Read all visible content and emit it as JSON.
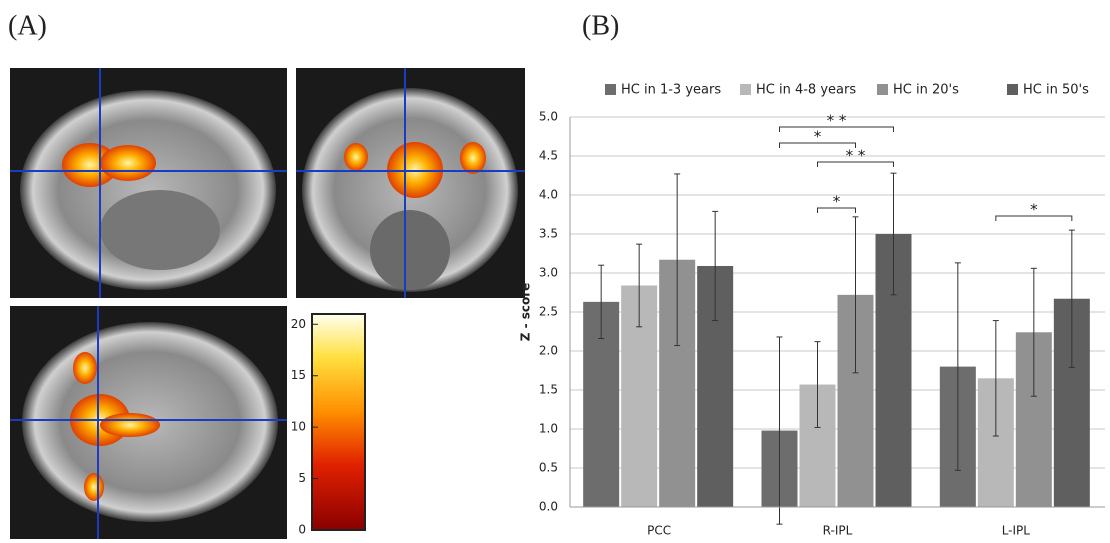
{
  "panel_labels": {
    "a": "(A)",
    "b": "(B)"
  },
  "colorbar": {
    "lim": [
      0,
      21
    ],
    "ticks": [
      0,
      5,
      10,
      15,
      20
    ]
  },
  "chart_data": {
    "type": "bar",
    "y_label": "Z - score",
    "categories": [
      "PCC",
      "R-IPL",
      "L-IPL"
    ],
    "series": [
      {
        "name": "HC in 1-3 years",
        "color": "#6d6d6d",
        "values": [
          2.63,
          0.98,
          1.8
        ],
        "errors": [
          0.47,
          1.2,
          1.33
        ]
      },
      {
        "name": "HC in 4-8 years",
        "color": "#b8b8b8",
        "values": [
          2.84,
          1.57,
          1.65
        ],
        "errors": [
          0.53,
          0.55,
          0.74
        ]
      },
      {
        "name": "HC in 20's",
        "color": "#919191",
        "values": [
          3.17,
          2.72,
          2.24
        ],
        "errors": [
          1.1,
          1.0,
          0.82
        ]
      },
      {
        "name": "HC in 50's",
        "color": "#5f5f5f",
        "values": [
          3.09,
          3.5,
          2.67
        ],
        "errors": [
          0.7,
          0.78,
          0.88
        ]
      }
    ],
    "significance": [
      {
        "category": 1,
        "from": 0,
        "to": 3,
        "label": "* *"
      },
      {
        "category": 1,
        "from": 0,
        "to": 2,
        "label": "*"
      },
      {
        "category": 1,
        "from": 1,
        "to": 3,
        "label": "* *"
      },
      {
        "category": 1,
        "from": 1,
        "to": 2,
        "label": "*"
      },
      {
        "category": 2,
        "from": 1,
        "to": 3,
        "label": "*"
      }
    ],
    "ylim": [
      0,
      5
    ],
    "yticks": [
      {
        "value": 0,
        "label": "0.0"
      },
      0.5,
      {
        "value": 1,
        "label": "1.0"
      },
      1.5,
      {
        "value": 2,
        "label": "2.0"
      },
      2.5,
      {
        "value": 3,
        "label": "3.0"
      },
      3.5,
      {
        "value": 4,
        "label": "4.0"
      },
      4.5,
      {
        "value": 5,
        "label": "5.0"
      }
    ],
    "grid": true
  }
}
